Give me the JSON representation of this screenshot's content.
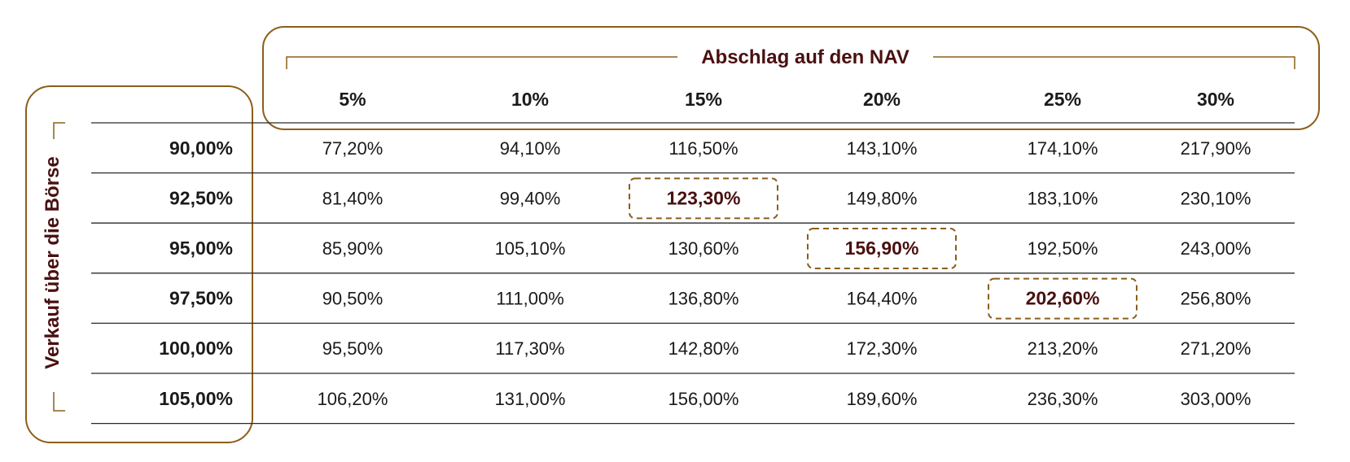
{
  "chart_data": {
    "type": "table",
    "column_title": "Abschlag auf den NAV",
    "row_title": "Verkauf über die Börse",
    "columns": [
      "5%",
      "10%",
      "15%",
      "20%",
      "25%",
      "30%"
    ],
    "rows": [
      {
        "label": "90,00%",
        "values": [
          "77,20%",
          "94,10%",
          "116,50%",
          "143,10%",
          "174,10%",
          "217,90%"
        ]
      },
      {
        "label": "92,50%",
        "values": [
          "81,40%",
          "99,40%",
          "123,30%",
          "149,80%",
          "183,10%",
          "230,10%"
        ]
      },
      {
        "label": "95,00%",
        "values": [
          "85,90%",
          "105,10%",
          "130,60%",
          "156,90%",
          "192,50%",
          "243,00%"
        ]
      },
      {
        "label": "97,50%",
        "values": [
          "90,50%",
          "111,00%",
          "136,80%",
          "164,40%",
          "202,60%",
          "256,80%"
        ]
      },
      {
        "label": "100,00%",
        "values": [
          "95,50%",
          "117,30%",
          "142,80%",
          "172,30%",
          "213,20%",
          "271,20%"
        ]
      },
      {
        "label": "105,00%",
        "values": [
          "106,20%",
          "131,00%",
          "156,00%",
          "189,60%",
          "236,30%",
          "303,00%"
        ]
      }
    ],
    "highlighted_cells": [
      {
        "row": 1,
        "col": 2
      },
      {
        "row": 2,
        "col": 3
      },
      {
        "row": 3,
        "col": 4
      }
    ]
  },
  "colors": {
    "frame": "#8B5E1A",
    "highlight_text": "#4A1010",
    "grid_line": "#2a2a2a",
    "text": "#1a1a1a"
  }
}
